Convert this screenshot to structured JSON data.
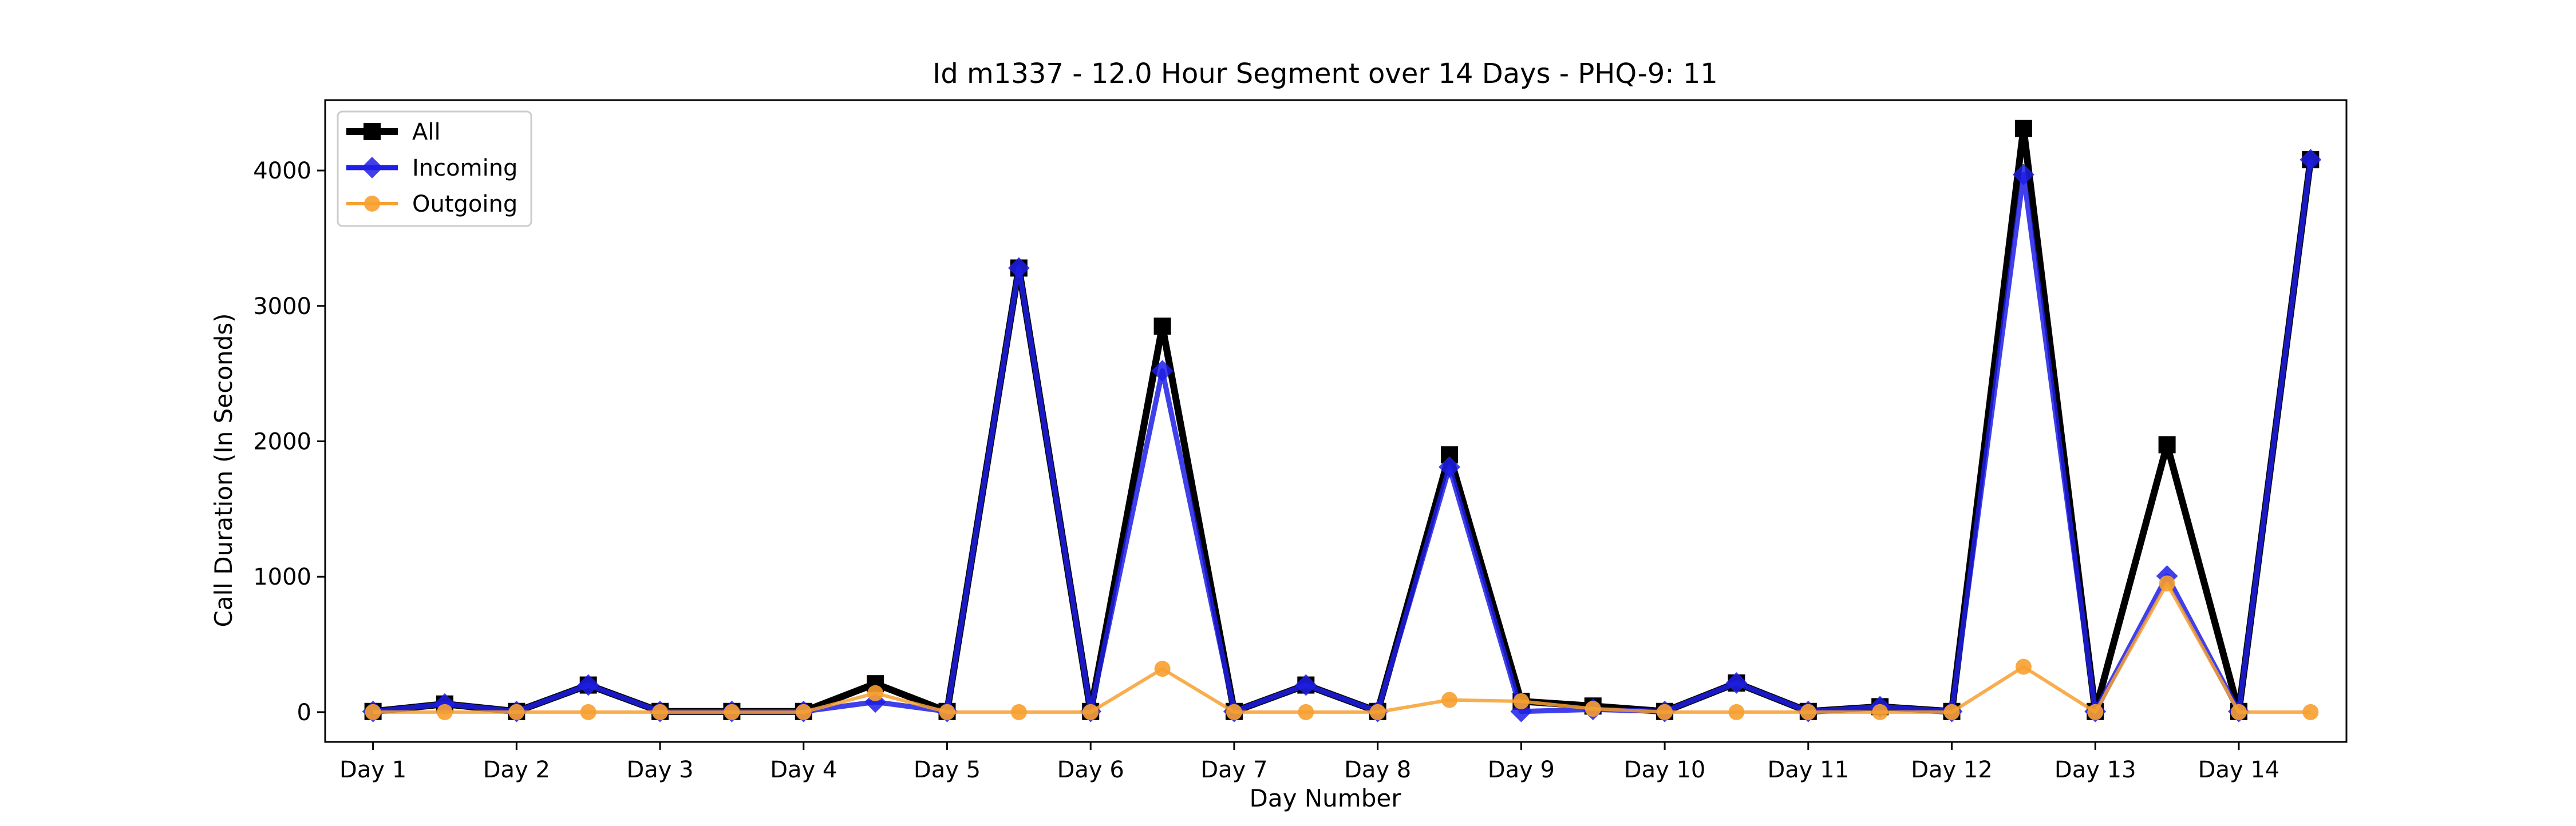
{
  "chart_data": {
    "type": "line",
    "title": "Id m1337 - 12.0 Hour Segment over 14 Days - PHQ-9: 11",
    "xlabel": "Day Number",
    "ylabel": "Call Duration (In Seconds)",
    "x_tick_labels": [
      "Day 1",
      "Day 2",
      "Day 3",
      "Day 4",
      "Day 5",
      "Day 6",
      "Day 7",
      "Day 8",
      "Day 9",
      "Day 10",
      "Day 11",
      "Day 12",
      "Day 13",
      "Day 14"
    ],
    "y_ticks": [
      0,
      1000,
      2000,
      3000,
      4000
    ],
    "ylim": [
      -220,
      4520
    ],
    "xlim": [
      -0.667,
      27.5
    ],
    "grid": false,
    "legend_position": "top-left",
    "series": [
      {
        "name": "All",
        "color": "#000000",
        "marker": "square",
        "values": [
          5,
          60,
          5,
          200,
          5,
          5,
          5,
          210,
          5,
          3280,
          5,
          2850,
          5,
          200,
          5,
          1900,
          80,
          45,
          5,
          215,
          5,
          40,
          5,
          4310,
          5,
          1975,
          5,
          4080
        ]
      },
      {
        "name": "Incoming",
        "color": "#1f1fe6",
        "marker": "diamond",
        "values": [
          5,
          60,
          5,
          200,
          5,
          5,
          5,
          75,
          5,
          3280,
          5,
          2520,
          5,
          200,
          5,
          1810,
          5,
          20,
          5,
          215,
          5,
          40,
          5,
          3970,
          5,
          1005,
          5,
          4080
        ]
      },
      {
        "name": "Outgoing",
        "color": "#f7a030",
        "marker": "circle",
        "values": [
          0,
          0,
          0,
          0,
          0,
          0,
          0,
          140,
          0,
          0,
          0,
          320,
          0,
          0,
          0,
          90,
          80,
          25,
          0,
          0,
          0,
          0,
          0,
          335,
          0,
          950,
          0,
          0
        ]
      }
    ]
  }
}
